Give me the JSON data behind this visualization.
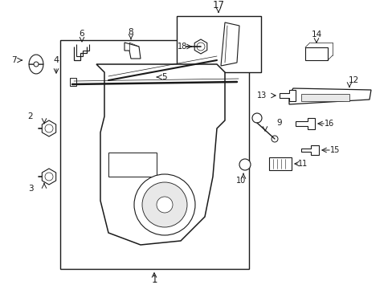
{
  "background_color": "#ffffff",
  "fig_width": 4.89,
  "fig_height": 3.6,
  "dpi": 100,
  "line_color": "#1a1a1a",
  "label_fontsize": 7.5,
  "arrow_lw": 0.7
}
